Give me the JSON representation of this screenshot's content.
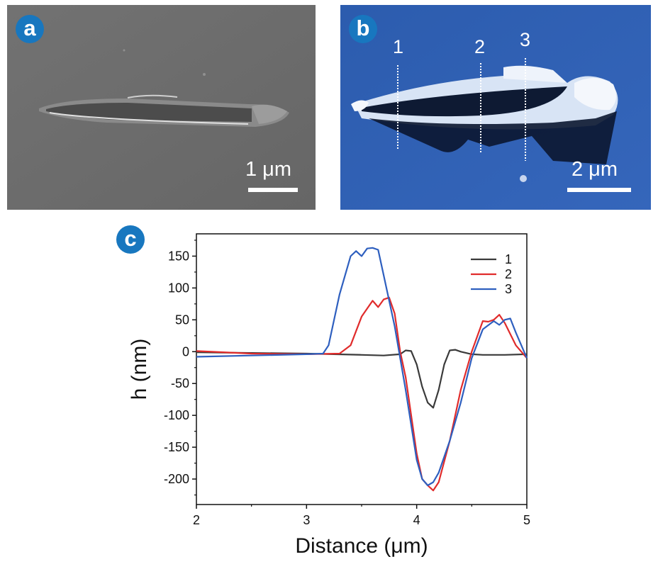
{
  "panels": {
    "a": {
      "label": "a",
      "scale_label": "1 μm"
    },
    "b": {
      "label": "b",
      "scale_label": "2 μm",
      "line_labels": [
        "1",
        "2",
        "3"
      ]
    },
    "c": {
      "label": "c"
    }
  },
  "colors": {
    "badge": "#1877bf",
    "sem_background": "#6e6e6e",
    "afm_background": "#2f5fb3",
    "series_1": "#3a3a3a",
    "series_2": "#e02b2b",
    "series_3": "#2e5fbf"
  },
  "chart_data": {
    "type": "line",
    "xlabel": "Distance (μm)",
    "ylabel": "h (nm)",
    "xlim": [
      2,
      5
    ],
    "ylim": [
      -240,
      185
    ],
    "xticks": [
      2,
      3,
      4,
      5
    ],
    "yticks": [
      150,
      100,
      50,
      0,
      -50,
      -100,
      -150,
      -200
    ],
    "legend_position": "top-right",
    "grid": false,
    "series": [
      {
        "name": "1",
        "color": "#3a3a3a",
        "x": [
          2.0,
          2.5,
          3.0,
          3.5,
          3.7,
          3.85,
          3.9,
          3.95,
          4.0,
          4.05,
          4.1,
          4.15,
          4.2,
          4.25,
          4.3,
          4.35,
          4.4,
          4.5,
          4.6,
          4.8,
          5.0
        ],
        "y": [
          -1,
          -2,
          -3,
          -5,
          -6,
          -4,
          2,
          1,
          -20,
          -55,
          -80,
          -88,
          -60,
          -20,
          2,
          3,
          0,
          -4,
          -5,
          -5,
          -4
        ]
      },
      {
        "name": "2",
        "color": "#e02b2b",
        "x": [
          2.0,
          2.5,
          3.0,
          3.3,
          3.4,
          3.5,
          3.6,
          3.65,
          3.7,
          3.75,
          3.8,
          3.85,
          3.9,
          4.0,
          4.05,
          4.1,
          4.15,
          4.2,
          4.3,
          4.4,
          4.5,
          4.6,
          4.65,
          4.7,
          4.75,
          4.8,
          4.9,
          5.0
        ],
        "y": [
          1,
          -3,
          -4,
          -3,
          10,
          55,
          80,
          70,
          82,
          85,
          60,
          0,
          -40,
          -160,
          -200,
          -210,
          -218,
          -205,
          -140,
          -60,
          0,
          48,
          47,
          50,
          58,
          45,
          10,
          -10
        ]
      },
      {
        "name": "3",
        "color": "#2e5fbf",
        "x": [
          2.0,
          2.5,
          3.0,
          3.15,
          3.2,
          3.3,
          3.4,
          3.45,
          3.5,
          3.55,
          3.6,
          3.65,
          3.7,
          3.8,
          3.9,
          4.0,
          4.05,
          4.1,
          4.15,
          4.2,
          4.3,
          4.4,
          4.5,
          4.6,
          4.7,
          4.75,
          4.8,
          4.85,
          4.9,
          5.0
        ],
        "y": [
          -8,
          -6,
          -4,
          -3,
          10,
          90,
          150,
          158,
          150,
          162,
          163,
          160,
          120,
          40,
          -60,
          -170,
          -200,
          -210,
          -205,
          -190,
          -140,
          -80,
          -10,
          35,
          48,
          42,
          50,
          52,
          30,
          -10
        ]
      }
    ]
  }
}
